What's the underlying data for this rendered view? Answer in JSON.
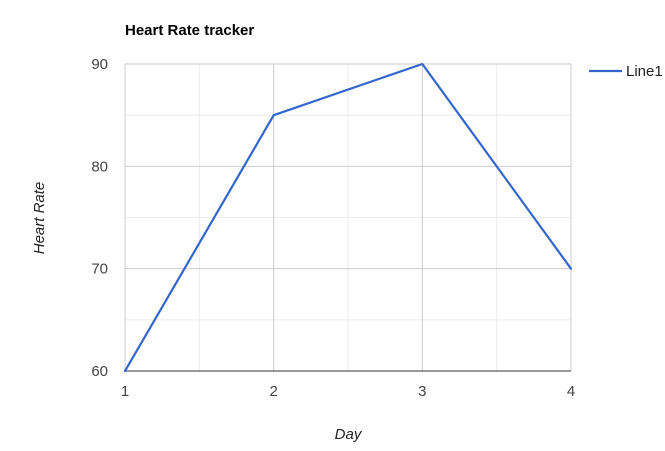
{
  "chart_data": {
    "type": "line",
    "title": "Heart Rate tracker",
    "xlabel": "Day",
    "ylabel": "Heart Rate",
    "x": [
      1,
      2,
      3,
      4
    ],
    "xlim": [
      1,
      4
    ],
    "ylim": [
      60,
      90
    ],
    "xticks": [
      1,
      2,
      3,
      4
    ],
    "yticks": [
      60,
      70,
      80,
      90
    ],
    "grid": true,
    "legend_position": "right",
    "series": [
      {
        "name": "Line1",
        "values": [
          60,
          85,
          90,
          70
        ],
        "color": "#3366cc"
      }
    ]
  }
}
